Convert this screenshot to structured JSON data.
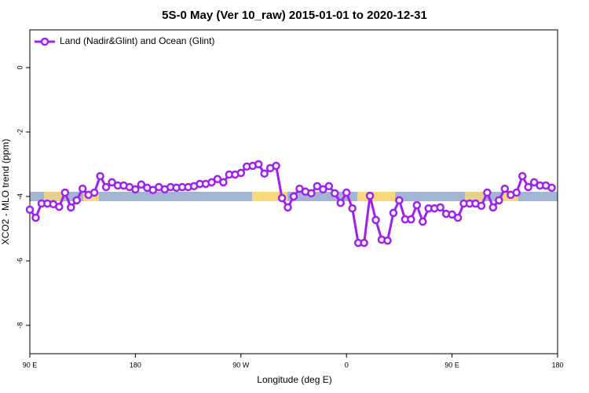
{
  "chart_data": {
    "type": "line",
    "title": "5S-0 May (Ver 10_raw)   2015-01-01 to 2020-12-31",
    "x_label": "Longitude (deg E)",
    "y_label": "XCO2 - MLO trend (ppm)",
    "xlim": [
      90,
      540
    ],
    "ylim": [
      -8.88,
      1.17
    ],
    "xticks": [
      {
        "value": 90,
        "label": "90 E"
      },
      {
        "value": 180,
        "label": "180"
      },
      {
        "value": 270,
        "label": "90 W"
      },
      {
        "value": 360,
        "label": "0"
      },
      {
        "value": 450,
        "label": "90 E"
      },
      {
        "value": 540,
        "label": "180"
      }
    ],
    "yticks": [
      0,
      -2,
      -4,
      -6,
      -8
    ],
    "legend": "top-left",
    "x": [
      90,
      95,
      100,
      105,
      110,
      115,
      120,
      125,
      130,
      135,
      140,
      145,
      150,
      155,
      160,
      165,
      170,
      175,
      180,
      185,
      190,
      195,
      200,
      205,
      210,
      215,
      220,
      225,
      230,
      235,
      240,
      245,
      250,
      255,
      260,
      265,
      270,
      275,
      280,
      285,
      290,
      295,
      300,
      305,
      310,
      315,
      320,
      325,
      330,
      335,
      340,
      345,
      350,
      355,
      360,
      365,
      370,
      375,
      380,
      385,
      390,
      395,
      400,
      405,
      410,
      415,
      420,
      425,
      430,
      435,
      440,
      445,
      450,
      455,
      460,
      465,
      470,
      475,
      480,
      485,
      490,
      495,
      500,
      505,
      510,
      515,
      520,
      525,
      530,
      535
    ],
    "series": [
      {
        "name": "Land (Nadir&Glint) and Ocean (Glint)",
        "color": "#a020f0",
        "values": [
          -4.41,
          -4.66,
          -4.22,
          -4.22,
          -4.24,
          -4.32,
          -3.88,
          -4.34,
          -4.12,
          -3.76,
          -3.95,
          -3.88,
          -3.37,
          -3.71,
          -3.56,
          -3.66,
          -3.66,
          -3.71,
          -3.78,
          -3.63,
          -3.73,
          -3.8,
          -3.71,
          -3.78,
          -3.71,
          -3.73,
          -3.71,
          -3.71,
          -3.68,
          -3.61,
          -3.61,
          -3.56,
          -3.46,
          -3.56,
          -3.32,
          -3.32,
          -3.27,
          -3.07,
          -3.05,
          -3.0,
          -3.29,
          -3.12,
          -3.05,
          -4.05,
          -4.34,
          -4.0,
          -3.76,
          -3.85,
          -3.9,
          -3.68,
          -3.78,
          -3.68,
          -3.9,
          -4.2,
          -3.88,
          -4.37,
          -5.44,
          -5.44,
          -3.98,
          -4.73,
          -5.34,
          -5.37,
          -4.51,
          -4.12,
          -4.71,
          -4.71,
          -4.27,
          -4.78,
          -4.37,
          -4.37,
          -4.34,
          -4.54,
          -4.56,
          -4.66,
          -4.22,
          -4.22,
          -4.22,
          -4.29,
          -3.88,
          -4.34,
          -4.12,
          -3.76,
          -3.95,
          -3.88,
          -3.37,
          -3.71,
          -3.56,
          -3.66,
          -3.66,
          -3.73
        ]
      }
    ]
  }
}
